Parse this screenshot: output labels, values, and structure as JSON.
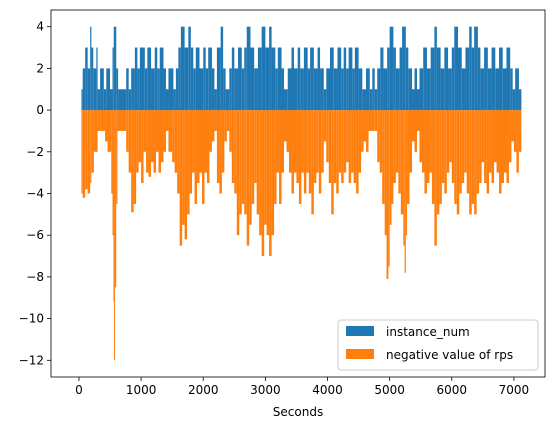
{
  "chart_data": {
    "type": "bar",
    "xlabel": "Seconds",
    "ylabel": "",
    "title": "",
    "xlim": [
      -450,
      7500
    ],
    "ylim": [
      -12.8,
      4.8
    ],
    "xticks": [
      0,
      1000,
      2000,
      3000,
      4000,
      5000,
      6000,
      7000
    ],
    "yticks": [
      4,
      2,
      0,
      -2,
      -4,
      -6,
      -8,
      -10,
      -12
    ],
    "grid": false,
    "legend_position": "lower-right",
    "series": [
      {
        "name": "instance_num",
        "color": "#1f77b4"
      },
      {
        "name": "negative value of rps",
        "color": "#ff7f0e"
      }
    ],
    "x_range": [
      40,
      7120
    ],
    "instance_segments": [
      [
        40,
        60,
        1
      ],
      [
        60,
        100,
        2
      ],
      [
        100,
        140,
        3
      ],
      [
        140,
        180,
        2
      ],
      [
        180,
        200,
        4
      ],
      [
        200,
        230,
        3
      ],
      [
        230,
        280,
        2
      ],
      [
        280,
        300,
        3
      ],
      [
        300,
        340,
        1
      ],
      [
        340,
        400,
        2
      ],
      [
        400,
        440,
        1
      ],
      [
        440,
        500,
        2
      ],
      [
        500,
        540,
        1
      ],
      [
        540,
        560,
        3
      ],
      [
        560,
        600,
        4
      ],
      [
        600,
        630,
        2
      ],
      [
        630,
        760,
        1
      ],
      [
        760,
        800,
        2
      ],
      [
        800,
        840,
        1
      ],
      [
        840,
        900,
        2
      ],
      [
        900,
        940,
        3
      ],
      [
        940,
        980,
        2
      ],
      [
        980,
        1060,
        3
      ],
      [
        1060,
        1100,
        2
      ],
      [
        1100,
        1160,
        3
      ],
      [
        1160,
        1220,
        2
      ],
      [
        1220,
        1260,
        3
      ],
      [
        1260,
        1300,
        2
      ],
      [
        1300,
        1360,
        3
      ],
      [
        1360,
        1400,
        2
      ],
      [
        1400,
        1440,
        1
      ],
      [
        1440,
        1520,
        2
      ],
      [
        1520,
        1560,
        1
      ],
      [
        1560,
        1600,
        2
      ],
      [
        1600,
        1640,
        3
      ],
      [
        1640,
        1700,
        4
      ],
      [
        1700,
        1760,
        3
      ],
      [
        1760,
        1800,
        4
      ],
      [
        1800,
        1840,
        3
      ],
      [
        1840,
        1880,
        2
      ],
      [
        1880,
        1940,
        3
      ],
      [
        1940,
        2000,
        2
      ],
      [
        2000,
        2040,
        3
      ],
      [
        2040,
        2080,
        2
      ],
      [
        2080,
        2140,
        3
      ],
      [
        2140,
        2180,
        2
      ],
      [
        2180,
        2220,
        1
      ],
      [
        2220,
        2280,
        3
      ],
      [
        2280,
        2320,
        4
      ],
      [
        2320,
        2360,
        2
      ],
      [
        2360,
        2420,
        1
      ],
      [
        2420,
        2460,
        2
      ],
      [
        2460,
        2500,
        3
      ],
      [
        2500,
        2560,
        2
      ],
      [
        2560,
        2620,
        3
      ],
      [
        2620,
        2660,
        2
      ],
      [
        2660,
        2700,
        3
      ],
      [
        2700,
        2760,
        4
      ],
      [
        2760,
        2820,
        3
      ],
      [
        2820,
        2880,
        2
      ],
      [
        2880,
        2940,
        3
      ],
      [
        2940,
        3000,
        4
      ],
      [
        3000,
        3060,
        3
      ],
      [
        3060,
        3100,
        4
      ],
      [
        3100,
        3160,
        3
      ],
      [
        3160,
        3200,
        2
      ],
      [
        3200,
        3260,
        3
      ],
      [
        3260,
        3300,
        2
      ],
      [
        3300,
        3360,
        1
      ],
      [
        3360,
        3420,
        2
      ],
      [
        3420,
        3460,
        3
      ],
      [
        3460,
        3520,
        2
      ],
      [
        3520,
        3560,
        3
      ],
      [
        3560,
        3620,
        2
      ],
      [
        3620,
        3680,
        3
      ],
      [
        3680,
        3720,
        2
      ],
      [
        3720,
        3780,
        3
      ],
      [
        3780,
        3840,
        2
      ],
      [
        3840,
        3880,
        3
      ],
      [
        3880,
        3940,
        2
      ],
      [
        3940,
        3980,
        1
      ],
      [
        3980,
        4040,
        2
      ],
      [
        4040,
        4100,
        3
      ],
      [
        4100,
        4160,
        2
      ],
      [
        4160,
        4220,
        3
      ],
      [
        4220,
        4260,
        2
      ],
      [
        4260,
        4300,
        3
      ],
      [
        4300,
        4340,
        2
      ],
      [
        4340,
        4400,
        3
      ],
      [
        4400,
        4440,
        2
      ],
      [
        4440,
        4500,
        3
      ],
      [
        4500,
        4560,
        2
      ],
      [
        4560,
        4620,
        1
      ],
      [
        4620,
        4680,
        2
      ],
      [
        4680,
        4720,
        1
      ],
      [
        4720,
        4760,
        2
      ],
      [
        4760,
        4800,
        1
      ],
      [
        4800,
        4850,
        2
      ],
      [
        4850,
        4900,
        3
      ],
      [
        4900,
        4960,
        2
      ],
      [
        4960,
        5000,
        3
      ],
      [
        5000,
        5060,
        4
      ],
      [
        5060,
        5100,
        3
      ],
      [
        5100,
        5160,
        2
      ],
      [
        5160,
        5200,
        3
      ],
      [
        5200,
        5260,
        4
      ],
      [
        5260,
        5300,
        3
      ],
      [
        5300,
        5360,
        2
      ],
      [
        5360,
        5400,
        1
      ],
      [
        5400,
        5440,
        2
      ],
      [
        5440,
        5480,
        1
      ],
      [
        5480,
        5540,
        2
      ],
      [
        5540,
        5600,
        3
      ],
      [
        5600,
        5660,
        2
      ],
      [
        5660,
        5720,
        3
      ],
      [
        5720,
        5760,
        4
      ],
      [
        5760,
        5820,
        3
      ],
      [
        5820,
        5880,
        2
      ],
      [
        5880,
        5940,
        3
      ],
      [
        5940,
        6000,
        2
      ],
      [
        6000,
        6040,
        3
      ],
      [
        6040,
        6100,
        4
      ],
      [
        6100,
        6160,
        3
      ],
      [
        6160,
        6220,
        2
      ],
      [
        6220,
        6280,
        3
      ],
      [
        6280,
        6320,
        4
      ],
      [
        6320,
        6360,
        3
      ],
      [
        6360,
        6420,
        4
      ],
      [
        6420,
        6460,
        3
      ],
      [
        6460,
        6520,
        2
      ],
      [
        6520,
        6580,
        3
      ],
      [
        6580,
        6640,
        2
      ],
      [
        6640,
        6700,
        3
      ],
      [
        6700,
        6760,
        2
      ],
      [
        6760,
        6820,
        3
      ],
      [
        6820,
        6880,
        2
      ],
      [
        6880,
        6940,
        3
      ],
      [
        6940,
        6980,
        2
      ],
      [
        6980,
        7020,
        1
      ],
      [
        7020,
        7080,
        2
      ],
      [
        7080,
        7120,
        1
      ]
    ],
    "rps_segments": [
      [
        40,
        60,
        -4.0
      ],
      [
        60,
        100,
        -4.2
      ],
      [
        100,
        140,
        -3.8
      ],
      [
        140,
        180,
        -4.0
      ],
      [
        180,
        200,
        -3.5
      ],
      [
        200,
        240,
        -3.0
      ],
      [
        240,
        300,
        -2.0
      ],
      [
        300,
        340,
        -1.0
      ],
      [
        340,
        420,
        -1.0
      ],
      [
        420,
        460,
        -1.5
      ],
      [
        460,
        520,
        -2.0
      ],
      [
        520,
        540,
        -4.0
      ],
      [
        540,
        555,
        -6.0
      ],
      [
        555,
        565,
        -9.2
      ],
      [
        565,
        580,
        -12.0
      ],
      [
        580,
        600,
        -8.5
      ],
      [
        600,
        620,
        -4.5
      ],
      [
        620,
        760,
        -1.0
      ],
      [
        760,
        800,
        -2.0
      ],
      [
        800,
        840,
        -3.0
      ],
      [
        840,
        880,
        -4.9
      ],
      [
        880,
        920,
        -4.5
      ],
      [
        920,
        960,
        -3.0
      ],
      [
        960,
        1000,
        -2.5
      ],
      [
        1000,
        1040,
        -3.5
      ],
      [
        1040,
        1080,
        -2.0
      ],
      [
        1080,
        1120,
        -3.0
      ],
      [
        1120,
        1160,
        -3.2
      ],
      [
        1160,
        1200,
        -2.5
      ],
      [
        1200,
        1240,
        -3.0
      ],
      [
        1240,
        1280,
        -2.0
      ],
      [
        1280,
        1320,
        -3.0
      ],
      [
        1320,
        1360,
        -2.5
      ],
      [
        1360,
        1400,
        -2.0
      ],
      [
        1400,
        1440,
        -1.0
      ],
      [
        1440,
        1500,
        -2.0
      ],
      [
        1500,
        1540,
        -2.5
      ],
      [
        1540,
        1580,
        -3.0
      ],
      [
        1580,
        1620,
        -4.0
      ],
      [
        1620,
        1660,
        -6.5
      ],
      [
        1660,
        1700,
        -5.5
      ],
      [
        1700,
        1740,
        -6.2
      ],
      [
        1740,
        1780,
        -5.0
      ],
      [
        1780,
        1820,
        -4.0
      ],
      [
        1820,
        1860,
        -3.0
      ],
      [
        1860,
        1900,
        -4.5
      ],
      [
        1900,
        1940,
        -3.5
      ],
      [
        1940,
        1980,
        -3.0
      ],
      [
        1980,
        2020,
        -4.5
      ],
      [
        2020,
        2060,
        -3.0
      ],
      [
        2060,
        2100,
        -3.5
      ],
      [
        2100,
        2140,
        -2.0
      ],
      [
        2140,
        2180,
        -1.5
      ],
      [
        2180,
        2220,
        -1.0
      ],
      [
        2220,
        2260,
        -3.5
      ],
      [
        2260,
        2300,
        -4.0
      ],
      [
        2300,
        2340,
        -3.0
      ],
      [
        2340,
        2380,
        -1.5
      ],
      [
        2380,
        2420,
        -1.0
      ],
      [
        2420,
        2460,
        -2.0
      ],
      [
        2460,
        2500,
        -3.5
      ],
      [
        2500,
        2540,
        -4.0
      ],
      [
        2540,
        2580,
        -6.0
      ],
      [
        2580,
        2620,
        -5.0
      ],
      [
        2620,
        2660,
        -4.5
      ],
      [
        2660,
        2700,
        -5.0
      ],
      [
        2700,
        2740,
        -6.5
      ],
      [
        2740,
        2780,
        -5.5
      ],
      [
        2780,
        2820,
        -4.5
      ],
      [
        2820,
        2860,
        -3.5
      ],
      [
        2860,
        2900,
        -5.0
      ],
      [
        2900,
        2940,
        -6.0
      ],
      [
        2940,
        2980,
        -7.0
      ],
      [
        2980,
        3020,
        -5.5
      ],
      [
        3020,
        3060,
        -6.0
      ],
      [
        3060,
        3100,
        -7.0
      ],
      [
        3100,
        3140,
        -6.0
      ],
      [
        3140,
        3180,
        -4.5
      ],
      [
        3180,
        3220,
        -3.0
      ],
      [
        3220,
        3260,
        -4.5
      ],
      [
        3260,
        3300,
        -3.0
      ],
      [
        3300,
        3340,
        -1.5
      ],
      [
        3340,
        3380,
        -2.0
      ],
      [
        3380,
        3420,
        -3.0
      ],
      [
        3420,
        3460,
        -4.0
      ],
      [
        3460,
        3500,
        -3.0
      ],
      [
        3500,
        3540,
        -3.5
      ],
      [
        3540,
        3580,
        -4.5
      ],
      [
        3580,
        3620,
        -3.0
      ],
      [
        3620,
        3660,
        -4.0
      ],
      [
        3660,
        3700,
        -3.0
      ],
      [
        3700,
        3740,
        -4.0
      ],
      [
        3740,
        3780,
        -5.0
      ],
      [
        3780,
        3820,
        -3.5
      ],
      [
        3820,
        3860,
        -3.0
      ],
      [
        3860,
        3900,
        -4.0
      ],
      [
        3900,
        3940,
        -3.0
      ],
      [
        3940,
        3980,
        -1.5
      ],
      [
        3980,
        4020,
        -2.5
      ],
      [
        4020,
        4060,
        -3.5
      ],
      [
        4060,
        4100,
        -5.0
      ],
      [
        4100,
        4140,
        -3.5
      ],
      [
        4140,
        4180,
        -4.0
      ],
      [
        4180,
        4220,
        -3.0
      ],
      [
        4220,
        4260,
        -3.5
      ],
      [
        4260,
        4300,
        -3.0
      ],
      [
        4300,
        4340,
        -2.5
      ],
      [
        4340,
        4380,
        -3.5
      ],
      [
        4380,
        4420,
        -3.0
      ],
      [
        4420,
        4460,
        -3.5
      ],
      [
        4460,
        4500,
        -4.0
      ],
      [
        4500,
        4540,
        -3.0
      ],
      [
        4540,
        4580,
        -2.0
      ],
      [
        4580,
        4620,
        -1.5
      ],
      [
        4620,
        4660,
        -2.0
      ],
      [
        4660,
        4700,
        -1.0
      ],
      [
        4700,
        4760,
        -1.0
      ],
      [
        4760,
        4800,
        -1.0
      ],
      [
        4800,
        4840,
        -2.5
      ],
      [
        4840,
        4880,
        -3.0
      ],
      [
        4880,
        4920,
        -4.5
      ],
      [
        4920,
        4950,
        -6.0
      ],
      [
        4950,
        4980,
        -8.1
      ],
      [
        4980,
        5000,
        -7.5
      ],
      [
        5000,
        5030,
        -5.5
      ],
      [
        5030,
        5060,
        -4.5
      ],
      [
        5060,
        5100,
        -3.5
      ],
      [
        5100,
        5140,
        -3.0
      ],
      [
        5140,
        5180,
        -4.0
      ],
      [
        5180,
        5220,
        -5.0
      ],
      [
        5220,
        5240,
        -6.5
      ],
      [
        5240,
        5260,
        -7.8
      ],
      [
        5260,
        5280,
        -6.0
      ],
      [
        5280,
        5320,
        -4.5
      ],
      [
        5320,
        5360,
        -3.0
      ],
      [
        5360,
        5400,
        -1.5
      ],
      [
        5400,
        5440,
        -2.0
      ],
      [
        5440,
        5480,
        -1.0
      ],
      [
        5480,
        5520,
        -2.5
      ],
      [
        5520,
        5560,
        -3.0
      ],
      [
        5560,
        5600,
        -4.0
      ],
      [
        5600,
        5640,
        -3.5
      ],
      [
        5640,
        5680,
        -3.0
      ],
      [
        5680,
        5720,
        -4.5
      ],
      [
        5720,
        5760,
        -6.5
      ],
      [
        5760,
        5800,
        -5.0
      ],
      [
        5800,
        5840,
        -4.5
      ],
      [
        5840,
        5880,
        -3.5
      ],
      [
        5880,
        5920,
        -4.0
      ],
      [
        5920,
        5960,
        -3.0
      ],
      [
        5960,
        6000,
        -2.5
      ],
      [
        6000,
        6040,
        -3.5
      ],
      [
        6040,
        6080,
        -4.5
      ],
      [
        6080,
        6120,
        -5.0
      ],
      [
        6120,
        6160,
        -4.0
      ],
      [
        6160,
        6200,
        -3.5
      ],
      [
        6200,
        6240,
        -3.0
      ],
      [
        6240,
        6280,
        -4.0
      ],
      [
        6280,
        6320,
        -5.0
      ],
      [
        6320,
        6360,
        -4.5
      ],
      [
        6360,
        6400,
        -5.0
      ],
      [
        6400,
        6440,
        -4.0
      ],
      [
        6440,
        6480,
        -3.5
      ],
      [
        6480,
        6520,
        -2.5
      ],
      [
        6520,
        6560,
        -3.5
      ],
      [
        6560,
        6600,
        -4.0
      ],
      [
        6600,
        6640,
        -3.0
      ],
      [
        6640,
        6680,
        -3.5
      ],
      [
        6680,
        6720,
        -2.5
      ],
      [
        6720,
        6760,
        -3.0
      ],
      [
        6760,
        6800,
        -4.0
      ],
      [
        6800,
        6840,
        -3.5
      ],
      [
        6840,
        6880,
        -3.0
      ],
      [
        6880,
        6920,
        -3.5
      ],
      [
        6920,
        6960,
        -2.5
      ],
      [
        6960,
        7000,
        -1.5
      ],
      [
        7000,
        7040,
        -2.0
      ],
      [
        7040,
        7080,
        -3.0
      ],
      [
        7080,
        7120,
        -2.0
      ]
    ]
  }
}
